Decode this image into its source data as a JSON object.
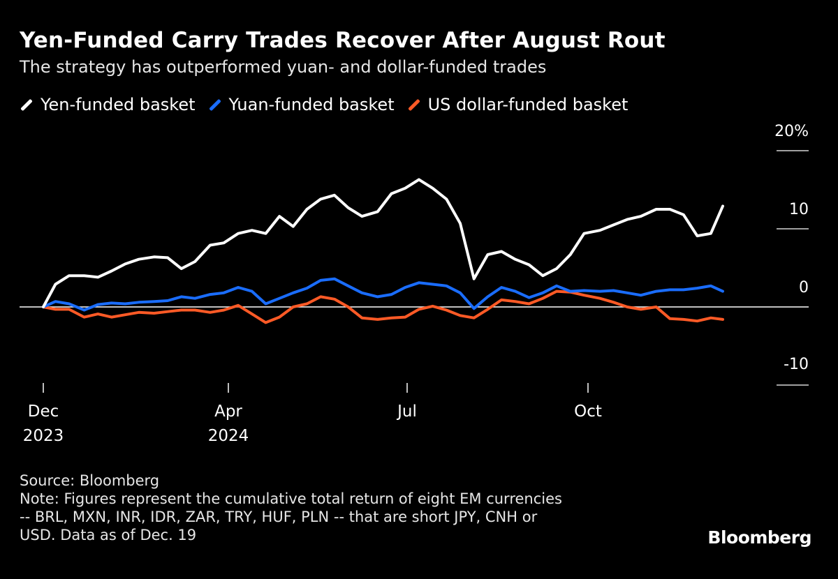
{
  "chart_data": {
    "type": "line",
    "title": "Yen-Funded Carry Trades Recover After August Rout",
    "subtitle": "The strategy has outperformed yuan- and dollar-funded trades",
    "ylabel": "",
    "xlabel": "",
    "ylim": [
      -10,
      20
    ],
    "y_ticks": [
      "20%",
      "10",
      "0",
      "-10"
    ],
    "y_tick_values": [
      20,
      10,
      0,
      -10
    ],
    "x_ticks": [
      {
        "date": "2023-12-01",
        "line1": "Dec",
        "line2": "2023"
      },
      {
        "date": "2024-04-01",
        "line1": "Apr",
        "line2": "2024"
      },
      {
        "date": "2024-07-01",
        "line1": "Jul",
        "line2": ""
      },
      {
        "date": "2024-10-01",
        "line1": "Oct",
        "line2": ""
      }
    ],
    "grid": false,
    "legend_position": "top-left",
    "x": [
      "2023-12-01",
      "2023-12-09",
      "2023-12-18",
      "2023-12-28",
      "2024-01-06",
      "2024-01-15",
      "2024-01-24",
      "2024-02-02",
      "2024-02-12",
      "2024-02-21",
      "2024-03-01",
      "2024-03-10",
      "2024-03-20",
      "2024-03-29",
      "2024-04-06",
      "2024-04-13",
      "2024-04-20",
      "2024-04-27",
      "2024-05-04",
      "2024-05-11",
      "2024-05-18",
      "2024-05-25",
      "2024-06-01",
      "2024-06-08",
      "2024-06-16",
      "2024-06-23",
      "2024-06-30",
      "2024-07-07",
      "2024-07-14",
      "2024-07-21",
      "2024-07-28",
      "2024-08-04",
      "2024-08-11",
      "2024-08-18",
      "2024-08-25",
      "2024-09-01",
      "2024-09-08",
      "2024-09-15",
      "2024-09-22",
      "2024-09-29",
      "2024-10-08",
      "2024-10-16",
      "2024-10-24",
      "2024-11-01",
      "2024-11-10",
      "2024-11-18",
      "2024-11-26",
      "2024-12-04",
      "2024-12-12",
      "2024-12-19"
    ],
    "series": [
      {
        "name": "Yen-funded basket",
        "color": "#ffffff",
        "values": [
          0,
          2.9,
          4.0,
          4.0,
          3.8,
          4.6,
          5.5,
          6.1,
          6.4,
          6.3,
          4.9,
          5.8,
          7.9,
          8.2,
          9.4,
          9.8,
          9.4,
          11.6,
          10.3,
          12.5,
          13.8,
          14.3,
          12.7,
          11.6,
          12.2,
          14.5,
          15.2,
          16.3,
          15.2,
          13.8,
          10.7,
          3.6,
          6.7,
          7.1,
          6.1,
          5.4,
          4.0,
          4.9,
          6.7,
          9.4,
          9.8,
          10.5,
          11.2,
          11.6,
          12.5,
          12.5,
          11.8,
          9.1,
          9.4,
          12.9
        ]
      },
      {
        "name": "Yuan-funded basket",
        "color": "#1a6dff",
        "values": [
          0,
          0.7,
          0.4,
          -0.4,
          0.3,
          0.5,
          0.4,
          0.6,
          0.7,
          0.8,
          1.3,
          1.1,
          1.6,
          1.8,
          2.5,
          2.0,
          0.4,
          1.1,
          1.8,
          2.4,
          3.4,
          3.6,
          2.7,
          1.8,
          1.3,
          1.6,
          2.5,
          3.1,
          2.9,
          2.7,
          1.8,
          -0.2,
          1.3,
          2.5,
          2.0,
          1.2,
          1.8,
          2.7,
          2.0,
          2.1,
          2.0,
          2.1,
          1.8,
          1.5,
          2.0,
          2.2,
          2.2,
          2.4,
          2.7,
          2.0
        ]
      },
      {
        "name": "US dollar-funded basket",
        "color": "#ff5a26",
        "values": [
          0,
          -0.3,
          -0.3,
          -1.3,
          -0.9,
          -1.3,
          -1.0,
          -0.7,
          -0.8,
          -0.6,
          -0.4,
          -0.4,
          -0.7,
          -0.4,
          0.2,
          -0.9,
          -2.0,
          -1.3,
          0,
          0.4,
          1.3,
          1.0,
          0,
          -1.4,
          -1.6,
          -1.4,
          -1.3,
          -0.3,
          0.1,
          -0.4,
          -1.1,
          -1.4,
          -0.3,
          0.9,
          0.7,
          0.4,
          1.1,
          2.0,
          1.9,
          1.5,
          1.1,
          0.6,
          0,
          -0.3,
          0,
          -1.5,
          -1.6,
          -1.8,
          -1.4,
          -1.6
        ]
      }
    ]
  },
  "notes": {
    "source": "Source: Bloomberg",
    "note": "Note: Figures represent the cumulative total return of eight EM currencies\n-- BRL, MXN, INR, IDR, ZAR, TRY, HUF, PLN -- that are short JPY, CNH or\nUSD. Data as of Dec. 19"
  },
  "logo": "Bloomberg"
}
